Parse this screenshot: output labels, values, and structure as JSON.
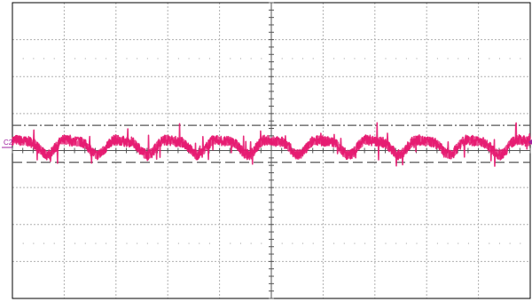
{
  "chart_data": {
    "type": "line",
    "title": "",
    "xlabel": "",
    "ylabel": "",
    "grid": true,
    "divisions": {
      "x": 10,
      "y": 8
    },
    "xlim": [
      0,
      10
    ],
    "ylim": [
      -4,
      4
    ],
    "channel": {
      "label": "C2",
      "color": "#e6176f",
      "marker_color": "#a020a0",
      "dc_level_div": 0.0,
      "ripple_peak_div": 0.25,
      "noise_spikes_div": 0.45,
      "cycles_on_screen": 10.3
    },
    "series": [
      {
        "x": [
          0,
          0.5,
          1,
          1.5,
          2,
          2.5,
          3,
          3.5,
          4,
          4.5,
          5,
          5.5,
          6,
          6.5,
          7,
          7.5,
          8,
          8.5,
          9,
          9.5,
          10
        ],
        "values": [
          0.1,
          0.1,
          -0.25,
          0.1,
          0.15,
          -0.05,
          -0.2,
          0.15,
          0.2,
          -0.05,
          -0.2,
          0.2,
          0.15,
          -0.1,
          -0.2,
          0.2,
          0.2,
          -0.15,
          -0.1,
          0.2,
          0.05
        ]
      }
    ],
    "cursors": {
      "upper_div": 0.55,
      "lower_div": -0.45
    },
    "trigger_level_div": 0.1
  }
}
